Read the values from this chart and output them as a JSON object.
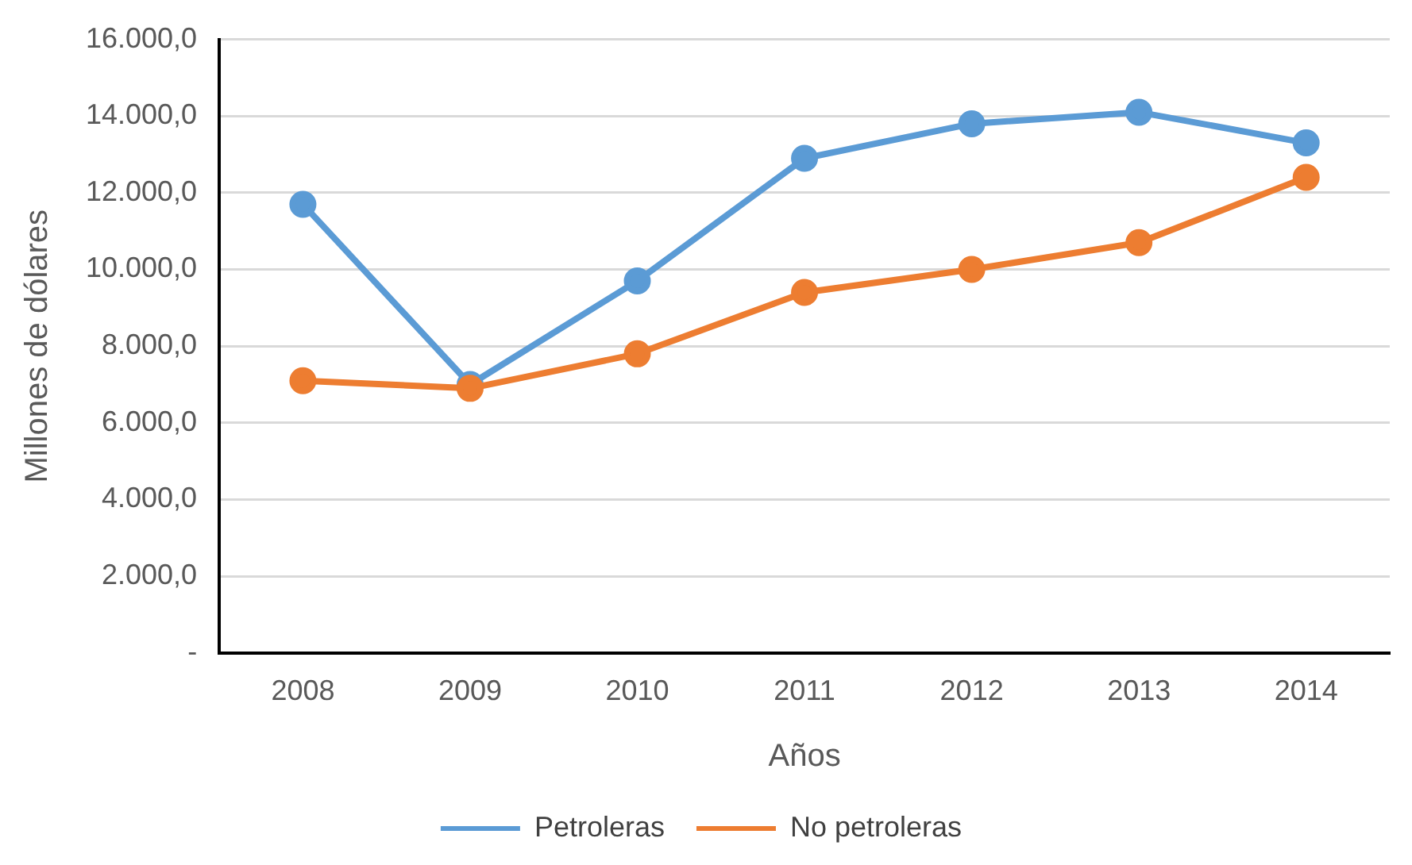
{
  "chart_data": {
    "type": "line",
    "xlabel": "Años",
    "ylabel": "Millones de dólares",
    "categories": [
      "2008",
      "2009",
      "2010",
      "2011",
      "2012",
      "2013",
      "2014"
    ],
    "series": [
      {
        "name": "Petroleras",
        "color": "#5b9bd5",
        "values": [
          11700,
          7000,
          9700,
          12900,
          13800,
          14100,
          13300
        ]
      },
      {
        "name": "No petroleras",
        "color": "#ed7d31",
        "values": [
          7100,
          6900,
          7800,
          9400,
          10000,
          10700,
          12400
        ]
      }
    ],
    "ylim": [
      0,
      16000
    ],
    "yticks": [
      {
        "value": 0,
        "label": "-"
      },
      {
        "value": 2000,
        "label": "2.000,0"
      },
      {
        "value": 4000,
        "label": "4.000,0"
      },
      {
        "value": 6000,
        "label": "6.000,0"
      },
      {
        "value": 8000,
        "label": "8.000,0"
      },
      {
        "value": 10000,
        "label": "10.000,0"
      },
      {
        "value": 12000,
        "label": "12.000,0"
      },
      {
        "value": 14000,
        "label": "14.000,0"
      },
      {
        "value": 16000,
        "label": "16.000,0"
      }
    ],
    "grid": "y",
    "legend": "bottom",
    "marker": "circle",
    "line_style": "solid"
  }
}
